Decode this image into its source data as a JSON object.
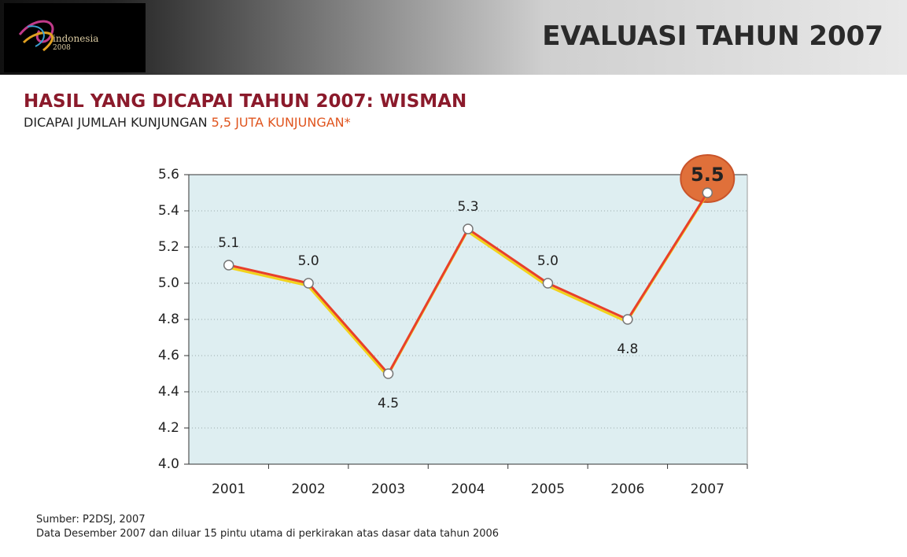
{
  "header": {
    "logo_text": "indonesia",
    "logo_year": "2008",
    "title": "EVALUASI TAHUN 2007"
  },
  "heading": "HASIL YANG DICAPAI TAHUN 2007: WISMAN",
  "subline": {
    "text": "DICAPAI JUMLAH KUNJUNGAN",
    "highlight": "5,5 JUTA KUNJUNGAN*"
  },
  "notes": [
    "Sumber: P2DSJ, 2007",
    "Data Desember 2007 dan diluar 15 pintu utama di perkirakan atas dasar data tahun 2006"
  ],
  "chart_data": {
    "type": "line",
    "categories": [
      "2001",
      "2002",
      "2003",
      "2004",
      "2005",
      "2006",
      "2007"
    ],
    "values": [
      5.1,
      5.0,
      4.5,
      5.3,
      5.0,
      4.8,
      5.5
    ],
    "value_labels": [
      "5.1",
      "5.0",
      "4.5",
      "5.3",
      "5.0",
      "4.8",
      "5.5"
    ],
    "color": "#e8402a",
    "ylim": [
      4.0,
      5.6
    ],
    "yticks": [
      {
        "value": 4.0,
        "label": "4.0"
      },
      4.2,
      4.4,
      4.6,
      4.8,
      {
        "value": 5.0,
        "label": "5.0"
      },
      5.2,
      5.4,
      5.6
    ],
    "grid": true
  }
}
